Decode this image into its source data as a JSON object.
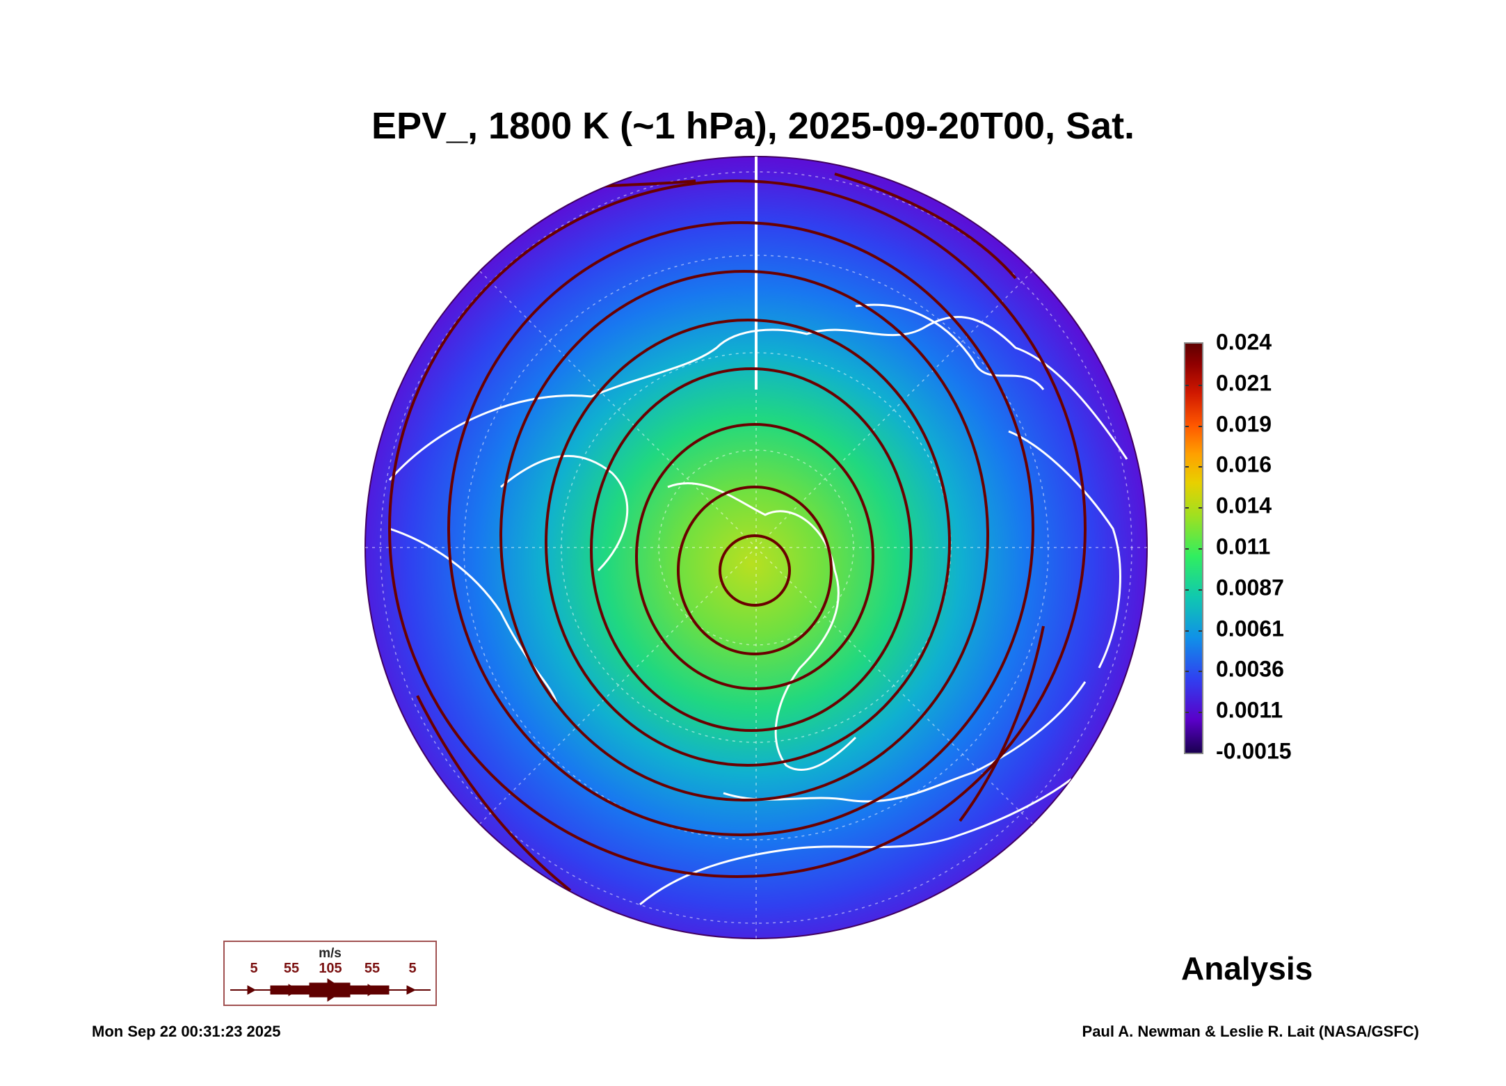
{
  "title": "EPV_, 1800 K (~1 hPa), 2025-09-20T00, Sat.",
  "colorbar": {
    "labels": [
      "0.024",
      "0.021",
      "0.019",
      "0.016",
      "0.014",
      "0.011",
      "0.0087",
      "0.0061",
      "0.0036",
      "0.0011",
      "-0.0015"
    ]
  },
  "wind_legend": {
    "unit": "m/s",
    "values": [
      "5",
      "55",
      "105",
      "55",
      "5"
    ],
    "color": "#600000"
  },
  "analysis_label": "Analysis",
  "footer": {
    "timestamp": "Mon Sep 22 00:31:23 2025",
    "credit": "Paul A. Newman & Leslie R. Lait (NASA/GSFC)"
  }
}
